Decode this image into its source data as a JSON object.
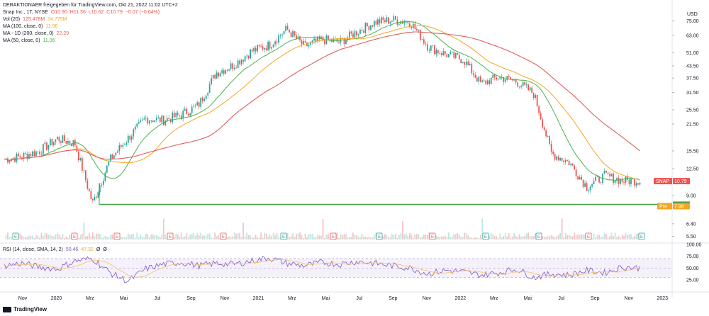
{
  "header": {
    "line1": "DERAKTIONAER freigegeben für TradingView.com, Okt 21, 2022 11:02 UTC+2",
    "symbol": "Snap Inc., 1T, NYSE",
    "ohlc": {
      "o": "O10.90",
      "h": "H11.36",
      "l": "L10.62",
      "c": "C10.79",
      "chg": "−0.07 (−0.64%)"
    },
    "vol": {
      "label": "Vol (20)",
      "v1": "125.478M",
      "v2": "34.775M"
    },
    "ma100": {
      "label": "MA (100, close, 0)",
      "value": "11.96"
    },
    "ma200": {
      "label": "MA - 1D (200, close, 0)",
      "value": "22.29"
    },
    "ma50": {
      "label": "MA (50, close, 0)",
      "value": "11.06"
    }
  },
  "rsi_header": {
    "label": "RSI (14, close, SMA, 14, 2)",
    "v1": "50.46",
    "v2": "47.32",
    "v3": "Ø",
    "v4": "Ø"
  },
  "currency": "USD",
  "footer": "TradingView",
  "colors": {
    "up": "#26a69a",
    "down": "#ef5350",
    "ma50": "#4caf50",
    "ma100": "#f5a623",
    "ma200": "#e35d5d",
    "rsi": "#7e57c2",
    "rsi_sma": "#f5c26b",
    "level": "#43a047",
    "earn_green": "#26a69a",
    "earn_red": "#ef5350"
  },
  "chart_data": {
    "type": "candlestick",
    "price_axis_ticks": [
      "75.00",
      "63.00",
      "51.00",
      "43.50",
      "37.50",
      "31.50",
      "25.50",
      "21.50",
      "15.50",
      "12.50",
      "9.00",
      "6.40",
      "5.50"
    ],
    "price_scale": "log",
    "price_labels": [
      {
        "text": "SNAP",
        "value": "10.79",
        "price": 10.79,
        "color": "#ef5350"
      },
      {
        "text": "",
        "value": "8.10",
        "price": 8.1,
        "color": "#43a047"
      },
      {
        "text": "Pre",
        "value": "7.96",
        "price": 7.96,
        "color": "#f5a623"
      }
    ],
    "support_level": 8.1,
    "x_ticks": [
      "Nov",
      "2020",
      "Mrz",
      "Mai",
      "Jul",
      "Sep",
      "Nov",
      "2021",
      "Mrz",
      "Mai",
      "Jul",
      "Sep",
      "Nov",
      "2022",
      "Mrz",
      "Mai",
      "Jul",
      "Sep",
      "Nov",
      "2023"
    ],
    "earnings": [
      "E",
      "E",
      "E",
      "E",
      "E",
      "E",
      "E",
      "E",
      "E",
      "E",
      "E",
      "E",
      "E",
      "E"
    ],
    "rsi_ticks": [
      "100.00",
      "75.00",
      "50.00",
      "25.00"
    ],
    "ma_last": {
      "ma50": 11.06,
      "ma100": 11.96,
      "ma200": 22.29
    },
    "price_path": [
      {
        "date": "2019-10",
        "price": 14.0
      },
      {
        "date": "2019-11",
        "price": 14.5
      },
      {
        "date": "2019-12",
        "price": 15.5
      },
      {
        "date": "2020-01",
        "price": 18.0
      },
      {
        "date": "2020-02",
        "price": 17.0
      },
      {
        "date": "2020-03",
        "price": 8.2
      },
      {
        "date": "2020-04",
        "price": 14.0
      },
      {
        "date": "2020-05",
        "price": 18.0
      },
      {
        "date": "2020-06",
        "price": 23.0
      },
      {
        "date": "2020-07",
        "price": 22.5
      },
      {
        "date": "2020-08",
        "price": 24.0
      },
      {
        "date": "2020-09",
        "price": 27.0
      },
      {
        "date": "2020-10",
        "price": 40.0
      },
      {
        "date": "2020-11",
        "price": 44.0
      },
      {
        "date": "2020-12",
        "price": 52.0
      },
      {
        "date": "2021-01",
        "price": 56.0
      },
      {
        "date": "2021-02",
        "price": 68.0
      },
      {
        "date": "2021-03",
        "price": 55.0
      },
      {
        "date": "2021-04",
        "price": 60.0
      },
      {
        "date": "2021-05",
        "price": 58.0
      },
      {
        "date": "2021-06",
        "price": 66.0
      },
      {
        "date": "2021-07",
        "price": 74.0
      },
      {
        "date": "2021-08",
        "price": 76.0
      },
      {
        "date": "2021-09",
        "price": 74.0
      },
      {
        "date": "2021-10",
        "price": 55.0
      },
      {
        "date": "2021-11",
        "price": 50.0
      },
      {
        "date": "2021-12",
        "price": 47.0
      },
      {
        "date": "2022-01",
        "price": 35.0
      },
      {
        "date": "2022-02",
        "price": 38.0
      },
      {
        "date": "2022-03",
        "price": 36.0
      },
      {
        "date": "2022-04",
        "price": 31.0
      },
      {
        "date": "2022-05",
        "price": 15.0
      },
      {
        "date": "2022-06",
        "price": 13.5
      },
      {
        "date": "2022-07",
        "price": 10.0
      },
      {
        "date": "2022-08",
        "price": 11.5
      },
      {
        "date": "2022-09",
        "price": 10.8
      },
      {
        "date": "2022-10",
        "price": 10.79
      }
    ],
    "rsi_path": [
      55,
      60,
      52,
      48,
      65,
      70,
      40,
      22,
      48,
      58,
      62,
      55,
      60,
      58,
      65,
      72,
      60,
      55,
      62,
      58,
      64,
      60,
      55,
      50,
      38,
      45,
      42,
      35,
      40,
      48,
      30,
      38,
      35,
      45,
      40,
      52,
      50
    ]
  }
}
